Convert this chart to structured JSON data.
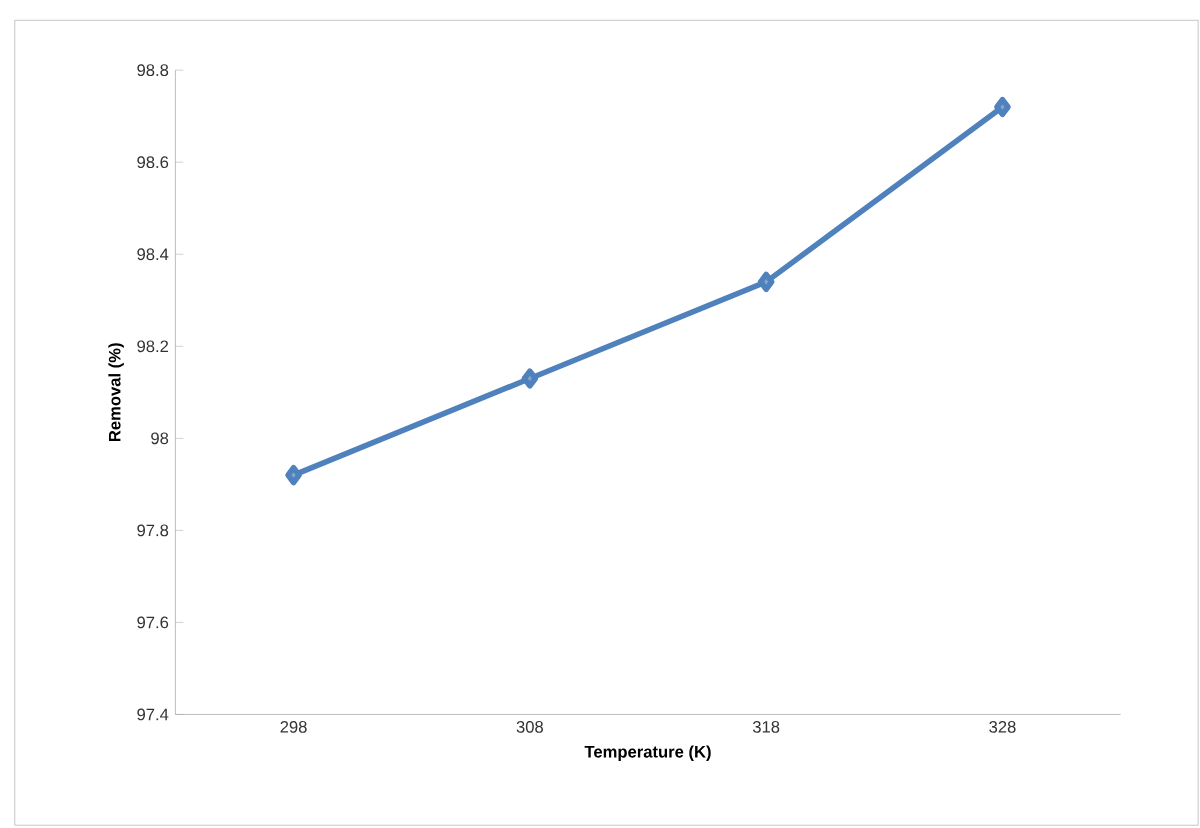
{
  "chart_data": {
    "type": "line",
    "xlabel": "Temperature (K)",
    "ylabel": "Removal (%)",
    "categories": [
      "298",
      "308",
      "318",
      "328"
    ],
    "series": [
      {
        "color": "#4f81bd",
        "values": [
          97.92,
          98.13,
          98.34,
          98.72
        ]
      }
    ],
    "ylim": [
      97.4,
      98.8
    ],
    "yticks": [
      97.4,
      97.6,
      97.8,
      98,
      98.2,
      98.4,
      98.6,
      98.8
    ],
    "marker": "diamond",
    "line_style": "solid"
  }
}
